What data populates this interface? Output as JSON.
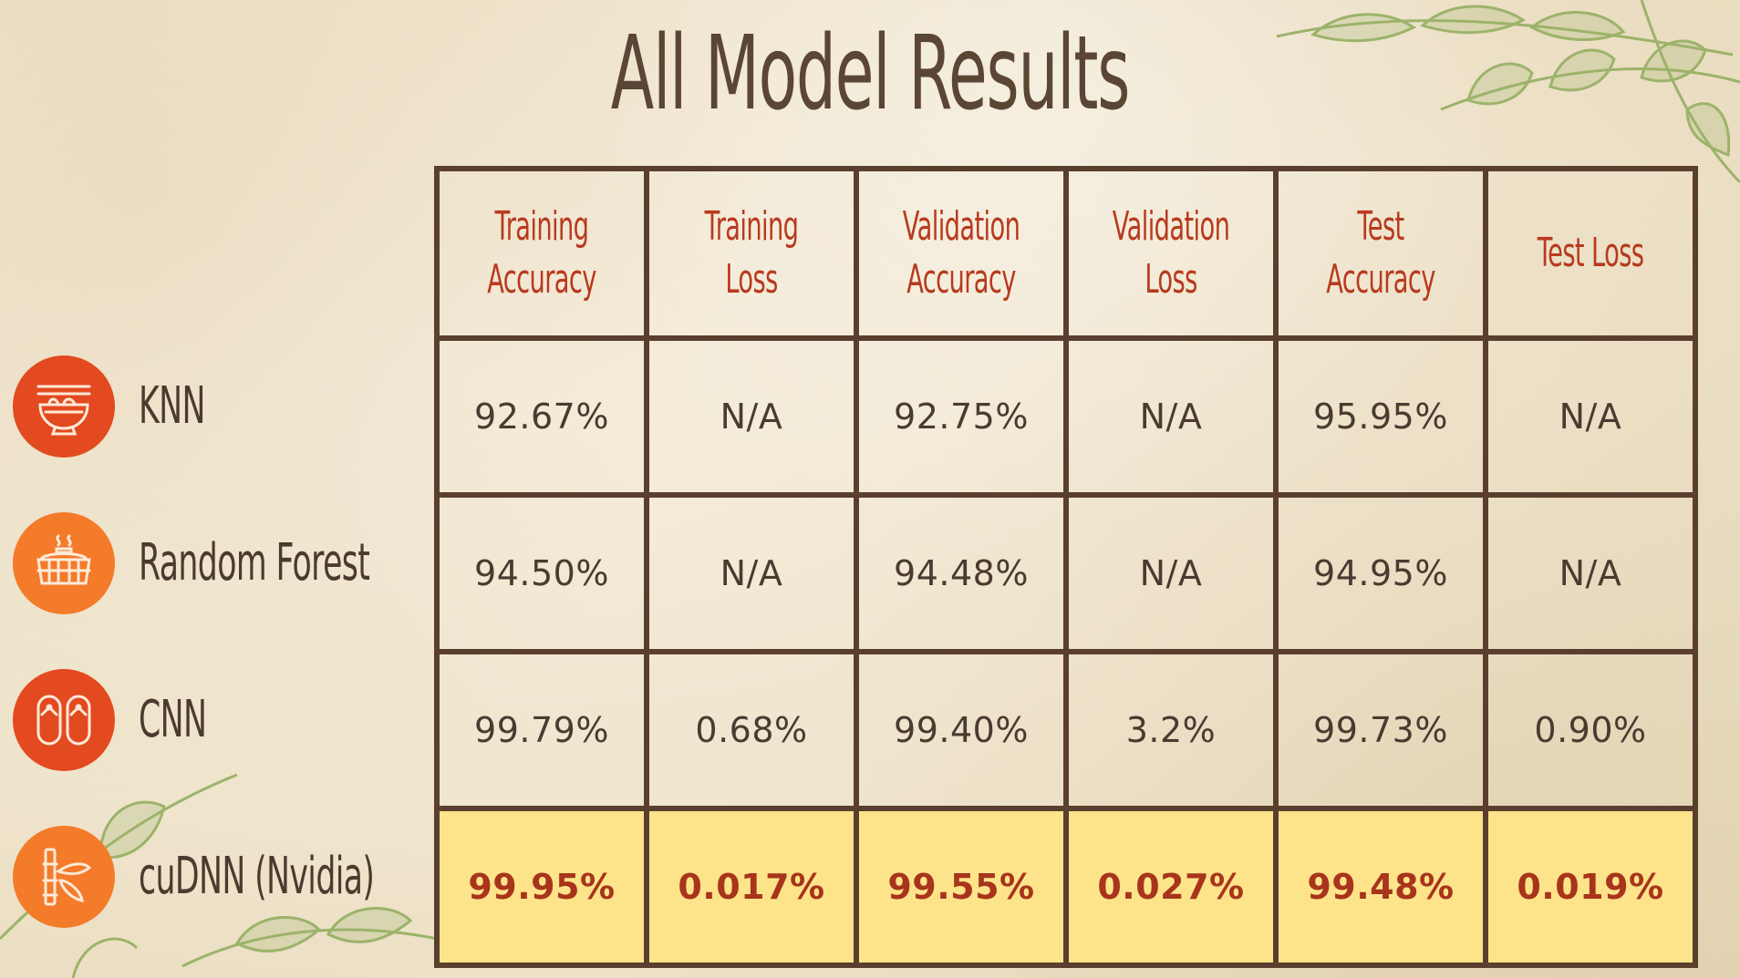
{
  "title": "All Model Results",
  "columns": [
    "Training Accuracy",
    "Training Loss",
    "Validation Accuracy",
    "Validation Loss",
    "Test Accuracy",
    "Test Loss"
  ],
  "models": [
    {
      "name": "KNN",
      "icon": "noodle-bowl-icon",
      "icon_color": "#e34a1f",
      "values": [
        "92.67%",
        "N/A",
        "92.75%",
        "N/A",
        "95.95%",
        "N/A"
      ]
    },
    {
      "name": "Random Forest",
      "icon": "steamer-basket-icon",
      "icon_color": "#f47b2a",
      "values": [
        "94.50%",
        "N/A",
        "94.48%",
        "N/A",
        "94.95%",
        "N/A"
      ]
    },
    {
      "name": "CNN",
      "icon": "sandals-icon",
      "icon_color": "#e34a1f",
      "values": [
        "99.79%",
        "0.68%",
        "99.40%",
        "3.2%",
        "99.73%",
        "0.90%"
      ]
    },
    {
      "name": "cuDNN (Nvidia)",
      "icon": "bamboo-icon",
      "icon_color": "#f47b2a",
      "values": [
        "99.95%",
        "0.017%",
        "99.55%",
        "0.027%",
        "99.48%",
        "0.019%"
      ]
    }
  ],
  "colors": {
    "header_text": "#b83a1e",
    "highlight_row": "#fde48a",
    "border": "#5a3f2e",
    "title": "#5b4635"
  }
}
